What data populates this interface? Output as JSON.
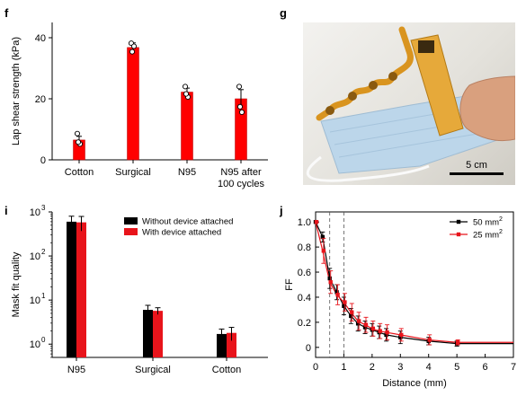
{
  "panels": {
    "f": "f",
    "g": "g",
    "i": "i",
    "j": "j"
  },
  "photo": {
    "scale_label": "5 cm"
  },
  "chart_data": [
    {
      "panel": "f",
      "type": "bar",
      "categories": [
        "Cotton",
        "Surgical",
        "N95",
        "N95 after|100 cycles"
      ],
      "values": [
        6.5,
        36.8,
        22.2,
        20.0
      ],
      "errors": [
        1.2,
        1.5,
        1.3,
        3.0
      ],
      "points": [
        [
          8.6,
          5.2,
          5.8
        ],
        [
          38.2,
          37.2,
          35.4
        ],
        [
          24.0,
          20.6,
          21.6
        ],
        [
          24.0,
          15.6,
          17.4
        ]
      ],
      "xlabel": "",
      "ylabel": "Lap shear strength (kPa)",
      "ylim": [
        0,
        45
      ],
      "yticks": [
        0,
        20,
        40
      ],
      "color": "#ff0000"
    },
    {
      "panel": "i",
      "type": "bar",
      "scale": "log",
      "categories": [
        "N95",
        "Surgical",
        "Cotton"
      ],
      "series": [
        {
          "name": "Without device attached",
          "color": "#000000",
          "values": [
            600,
            6.0,
            1.7
          ],
          "errors": [
            200,
            1.6,
            0.5
          ]
        },
        {
          "name": "With device attached",
          "color": "#e8141b",
          "values": [
            580,
            5.7,
            1.8
          ],
          "errors": [
            210,
            1.0,
            0.6
          ]
        }
      ],
      "ylabel": "Mask fit quality",
      "ylim": [
        0.5,
        1000
      ],
      "yticks": [
        {
          "base": "10",
          "exp": "0",
          "v": 1
        },
        {
          "base": "10",
          "exp": "1",
          "v": 10
        },
        {
          "base": "10",
          "exp": "2",
          "v": 100
        },
        {
          "base": "10",
          "exp": "3",
          "v": 1000
        }
      ],
      "legend": "top-right"
    },
    {
      "panel": "j",
      "type": "line",
      "x": [
        0,
        0.25,
        0.5,
        0.75,
        1.0,
        1.25,
        1.5,
        1.75,
        2.0,
        2.25,
        2.5,
        3.0,
        4.0,
        5.0
      ],
      "series": [
        {
          "name": "50 mm",
          "sup": "2",
          "color": "#000000",
          "y": [
            1.0,
            0.88,
            0.55,
            0.44,
            0.33,
            0.25,
            0.19,
            0.16,
            0.14,
            0.12,
            0.1,
            0.08,
            0.05,
            0.03
          ],
          "err": [
            0.0,
            0.04,
            0.08,
            0.06,
            0.07,
            0.06,
            0.06,
            0.05,
            0.05,
            0.05,
            0.05,
            0.05,
            0.03,
            0.02
          ]
        },
        {
          "name": "25 mm",
          "sup": "2",
          "color": "#e8141b",
          "y": [
            1.0,
            0.77,
            0.52,
            0.42,
            0.36,
            0.28,
            0.21,
            0.18,
            0.15,
            0.13,
            0.12,
            0.1,
            0.06,
            0.04
          ],
          "err": [
            0.0,
            0.1,
            0.09,
            0.08,
            0.07,
            0.07,
            0.07,
            0.06,
            0.06,
            0.06,
            0.06,
            0.05,
            0.04,
            0.02
          ]
        }
      ],
      "xlabel": "Distance (mm)",
      "ylabel": "FF",
      "xlim": [
        0,
        7
      ],
      "ylim": [
        -0.08,
        1.08
      ],
      "xticks": [
        0,
        1,
        2,
        3,
        4,
        5,
        6,
        7
      ],
      "yticks": [
        0,
        0.2,
        0.4,
        0.6,
        0.8,
        1.0
      ],
      "yticklabels": [
        "0",
        "0.2",
        "0.4",
        "0.6",
        "0.8",
        "1.0"
      ],
      "vlines": [
        0.5,
        1.0
      ],
      "legend": "top-right"
    }
  ]
}
